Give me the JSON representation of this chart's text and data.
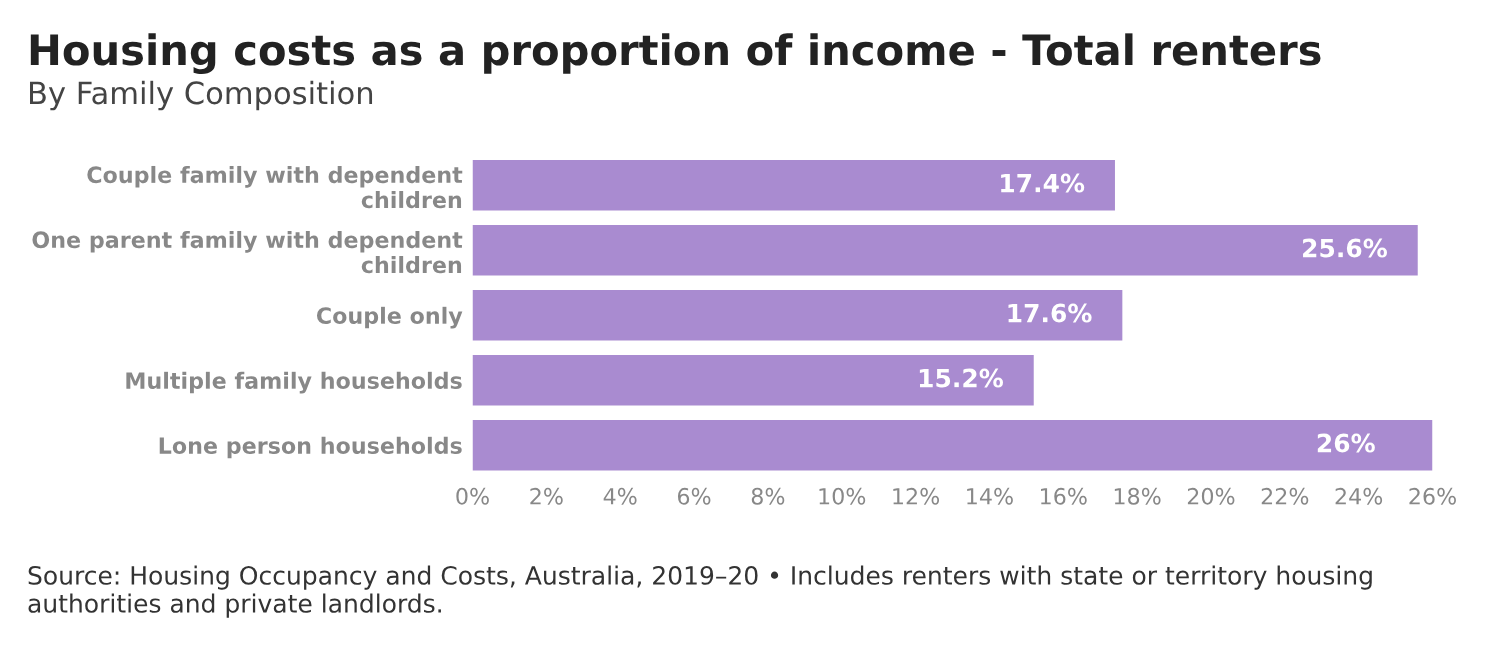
{
  "chart_data": {
    "type": "bar",
    "orientation": "horizontal",
    "title": "Housing costs as a proportion of income - Total renters",
    "subtitle": "By Family Composition",
    "categories": [
      "Couple family with dependent children",
      "One parent family with dependent children",
      "Couple only",
      "Multiple family households",
      "Lone person households"
    ],
    "values": [
      17.4,
      25.6,
      17.6,
      15.2,
      26
    ],
    "value_labels": [
      "17.4%",
      "25.6%",
      "17.6%",
      "15.2%",
      "26%"
    ],
    "color": "#a98bd0",
    "xlim": [
      0,
      26
    ],
    "xticks": [
      {
        "value": 0,
        "label": "0%"
      },
      {
        "value": 2,
        "label": "2%"
      },
      {
        "value": 4,
        "label": "4%"
      },
      {
        "value": 6,
        "label": "6%"
      },
      {
        "value": 8,
        "label": "8%"
      },
      {
        "value": 10,
        "label": "10%"
      },
      {
        "value": 12,
        "label": "12%"
      },
      {
        "value": 14,
        "label": "14%"
      },
      {
        "value": 16,
        "label": "16%"
      },
      {
        "value": 18,
        "label": "18%"
      },
      {
        "value": 20,
        "label": "20%"
      },
      {
        "value": 22,
        "label": "22%"
      },
      {
        "value": 24,
        "label": "24%"
      },
      {
        "value": 26,
        "label": "26%"
      }
    ],
    "grid": false,
    "annotations": [
      "Source: Housing Occupancy and Costs, Australia, 2019–20 • Includes renters with state or territory housing authorities and private landlords."
    ]
  }
}
